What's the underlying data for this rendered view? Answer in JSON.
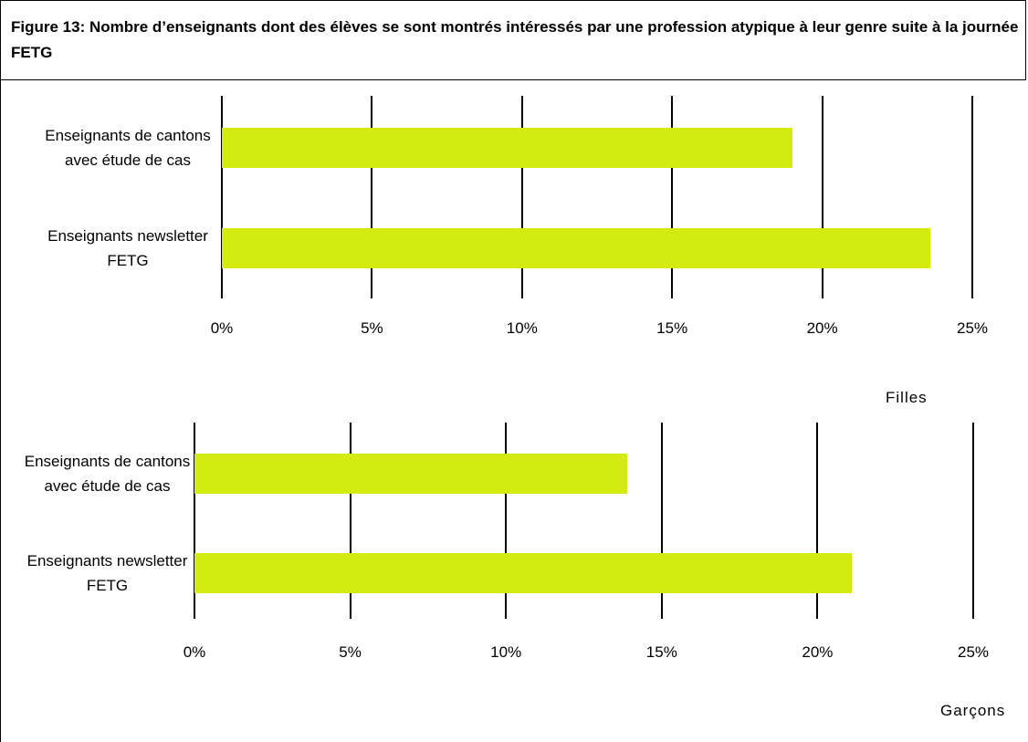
{
  "title": "Figure 13: Nombre d’enseignants dont des élèves se sont montrés intéressés par une profession atypique à leur genre suite à la journée FETG",
  "chart_data": [
    {
      "type": "barh",
      "label": "Filles",
      "categories": [
        "Enseignants de cantons avec étude de cas",
        "Enseignants newsletter FETG"
      ],
      "values": [
        19.0,
        23.6
      ],
      "color": "#d4eb12",
      "xlim": [
        0,
        25
      ],
      "xticks": [
        {
          "value": 0,
          "label": "0%"
        },
        {
          "value": 5,
          "label": "5%"
        },
        {
          "value": 10,
          "label": "10%"
        },
        {
          "value": 15,
          "label": "15%"
        },
        {
          "value": 20,
          "label": "20%"
        },
        {
          "value": 25,
          "label": "25%"
        }
      ],
      "grid": true
    },
    {
      "type": "barh",
      "label": "Garçons",
      "categories": [
        "Enseignants de cantons avec étude de cas",
        "Enseignants newsletter FETG"
      ],
      "values": [
        13.9,
        21.1
      ],
      "color": "#d4eb12",
      "xlim": [
        0,
        25
      ],
      "xticks": [
        {
          "value": 0,
          "label": "0%"
        },
        {
          "value": 5,
          "label": "5%"
        },
        {
          "value": 10,
          "label": "10%"
        },
        {
          "value": 15,
          "label": "15%"
        },
        {
          "value": 20,
          "label": "20%"
        },
        {
          "value": 25,
          "label": "25%"
        }
      ],
      "grid": true
    }
  ]
}
